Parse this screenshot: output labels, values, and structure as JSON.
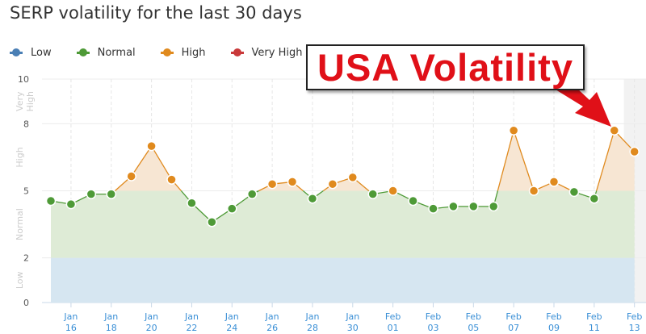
{
  "title": "SERP volatility for the last 30 days",
  "annotation": "USA Volatility",
  "legend": [
    {
      "label": "Low",
      "color": "#4a7fb5"
    },
    {
      "label": "Normal",
      "color": "#4e9a37"
    },
    {
      "label": "High",
      "color": "#e08a1e"
    },
    {
      "label": "Very High",
      "color": "#c9393a"
    }
  ],
  "chart_data": {
    "type": "line",
    "title": "SERP volatility for the last 30 days",
    "ylim": [
      0,
      10
    ],
    "yticks": [
      0,
      2,
      5,
      8,
      10
    ],
    "bands": [
      {
        "label": "Low",
        "from": 0,
        "to": 2,
        "color": "#d6e6f1"
      },
      {
        "label": "Normal",
        "from": 2,
        "to": 5,
        "color": "#deebd6"
      },
      {
        "label": "High",
        "from": 5,
        "to": 8,
        "color": "#f7e6d3"
      },
      {
        "label": "Very High",
        "from": 8,
        "to": 10,
        "color": "#f5dcdc"
      }
    ],
    "x": [
      "Jan 15",
      "Jan 16",
      "Jan 17",
      "Jan 18",
      "Jan 19",
      "Jan 20",
      "Jan 21",
      "Jan 22",
      "Jan 23",
      "Jan 24",
      "Jan 25",
      "Jan 26",
      "Jan 27",
      "Jan 28",
      "Jan 29",
      "Jan 30",
      "Jan 31",
      "Feb 01",
      "Feb 02",
      "Feb 03",
      "Feb 04",
      "Feb 05",
      "Feb 06",
      "Feb 07",
      "Feb 08",
      "Feb 09",
      "Feb 10",
      "Feb 11",
      "Feb 12",
      "Feb 13"
    ],
    "values": [
      4.55,
      4.4,
      4.85,
      4.85,
      5.65,
      7.0,
      5.5,
      4.45,
      3.6,
      4.2,
      4.85,
      5.3,
      5.4,
      4.65,
      5.3,
      5.6,
      4.85,
      5.0,
      4.55,
      4.2,
      4.3,
      4.3,
      4.3,
      7.7,
      5.0,
      5.4,
      4.95,
      4.65,
      7.7,
      6.75
    ],
    "xtick_labels": [
      [
        "Jan",
        "16"
      ],
      [
        "Jan",
        "18"
      ],
      [
        "Jan",
        "20"
      ],
      [
        "Jan",
        "22"
      ],
      [
        "Jan",
        "24"
      ],
      [
        "Jan",
        "26"
      ],
      [
        "Jan",
        "28"
      ],
      [
        "Jan",
        "30"
      ],
      [
        "Feb",
        "01"
      ],
      [
        "Feb",
        "03"
      ],
      [
        "Feb",
        "05"
      ],
      [
        "Feb",
        "07"
      ],
      [
        "Feb",
        "09"
      ],
      [
        "Feb",
        "11"
      ],
      [
        "Feb",
        "13"
      ]
    ],
    "grid": true,
    "legend_position": "top-left"
  }
}
